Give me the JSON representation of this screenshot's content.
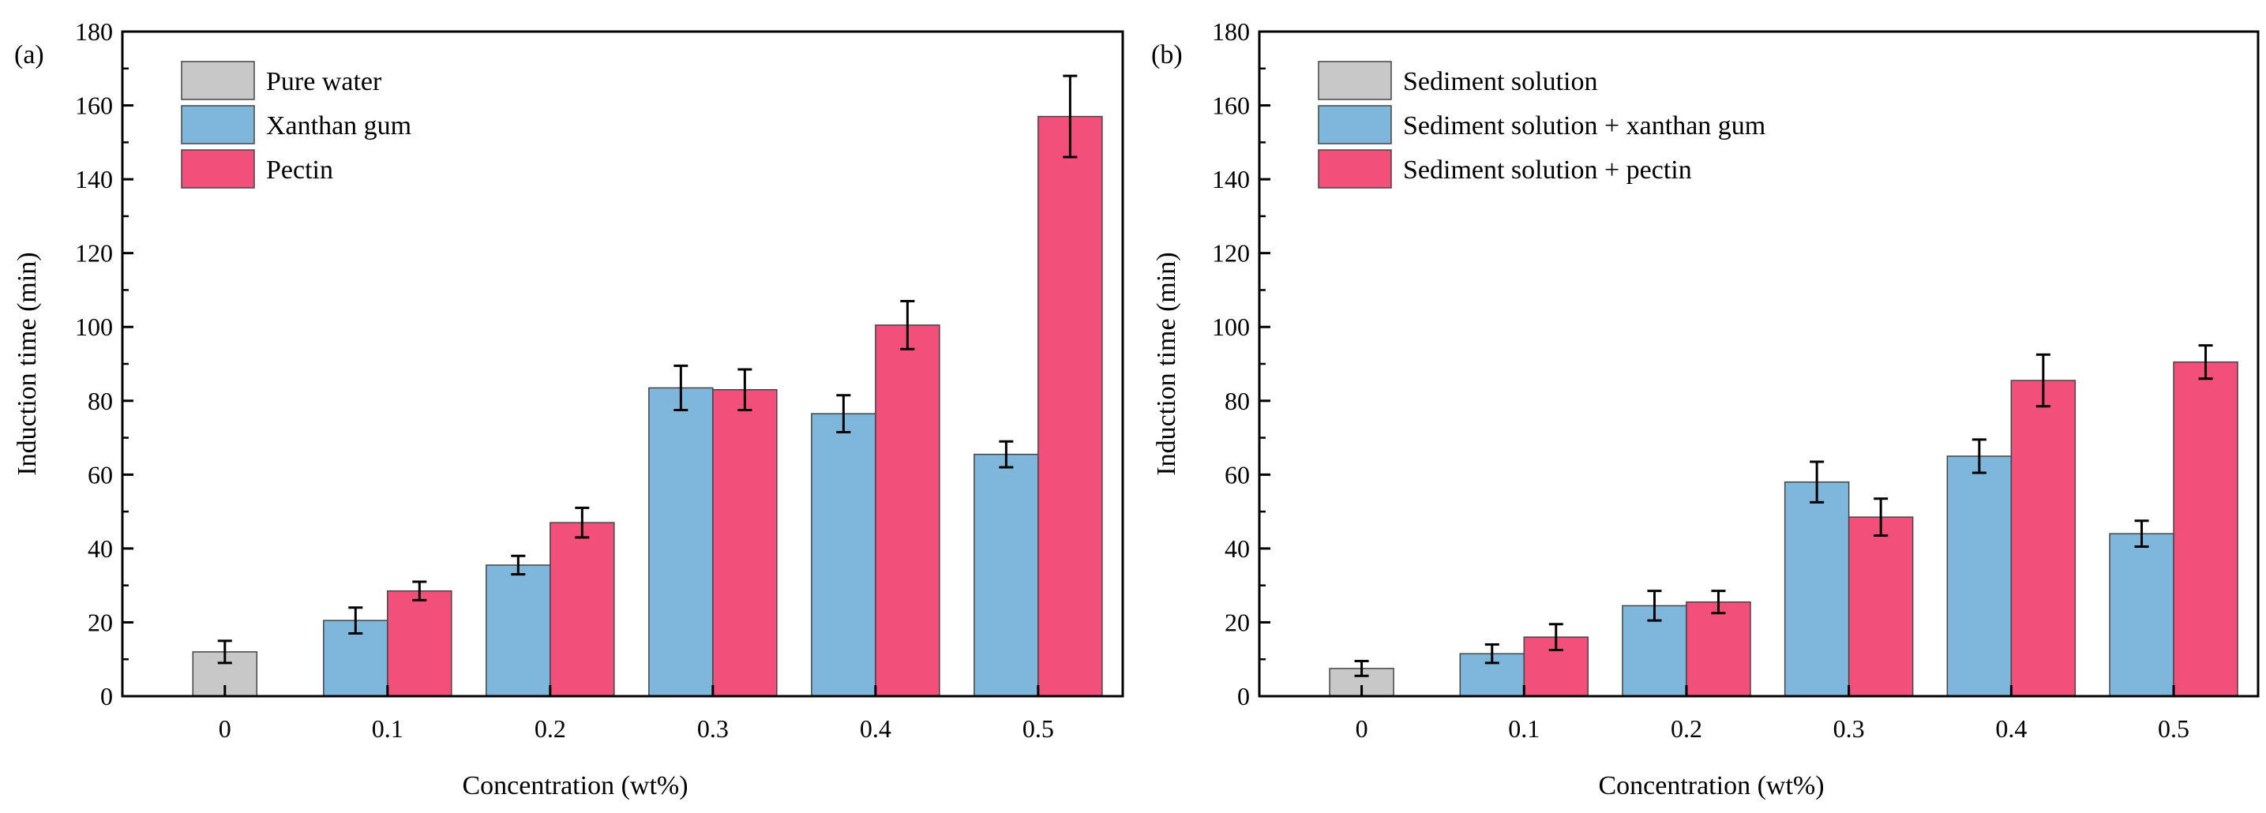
{
  "chart_data": [
    {
      "type": "bar",
      "panel_label": "(a)",
      "title": "",
      "xlabel": "Concentration (wt%)",
      "ylabel": "Induction time (min)",
      "ylim": [
        0,
        180
      ],
      "yticks": [
        "0",
        "20",
        "40",
        "60",
        "80",
        "100",
        "120",
        "140",
        "160",
        "180"
      ],
      "categories": [
        "0",
        "0.1",
        "0.2",
        "0.3",
        "0.4",
        "0.5"
      ],
      "legend_position": "top-left",
      "series": [
        {
          "name": "Pure water",
          "color": "#c8c8c8",
          "values": [
            12,
            null,
            null,
            null,
            null,
            null
          ],
          "errors": [
            3,
            null,
            null,
            null,
            null,
            null
          ]
        },
        {
          "name": "Xanthan gum",
          "color": "#7fb6dc",
          "values": [
            null,
            20.5,
            35.5,
            83.5,
            76.5,
            65.5
          ],
          "errors": [
            null,
            3.5,
            2.5,
            6,
            5,
            3.5
          ]
        },
        {
          "name": "Pectin",
          "color": "#f34f7b",
          "values": [
            null,
            28.5,
            47,
            83,
            100.5,
            157
          ],
          "errors": [
            null,
            2.5,
            4,
            5.5,
            6.5,
            11
          ]
        }
      ]
    },
    {
      "type": "bar",
      "panel_label": "(b)",
      "title": "",
      "xlabel": "Concentration (wt%)",
      "ylabel": "Induction time (min)",
      "ylim": [
        0,
        180
      ],
      "yticks": [
        "0",
        "20",
        "40",
        "60",
        "80",
        "100",
        "120",
        "140",
        "160",
        "180"
      ],
      "categories": [
        "0",
        "0.1",
        "0.2",
        "0.3",
        "0.4",
        "0.5"
      ],
      "legend_position": "top-left",
      "series": [
        {
          "name": "Sediment solution",
          "color": "#c8c8c8",
          "values": [
            7.5,
            null,
            null,
            null,
            null,
            null
          ],
          "errors": [
            2,
            null,
            null,
            null,
            null,
            null
          ]
        },
        {
          "name": "Sediment solution + xanthan gum",
          "color": "#7fb6dc",
          "values": [
            null,
            11.5,
            24.5,
            58,
            65,
            44
          ],
          "errors": [
            null,
            2.5,
            4,
            5.5,
            4.5,
            3.5
          ]
        },
        {
          "name": "Sediment solution + pectin",
          "color": "#f34f7b",
          "values": [
            null,
            16,
            25.5,
            48.5,
            85.5,
            90.5
          ],
          "errors": [
            null,
            3.5,
            3,
            5,
            7,
            4.5
          ]
        }
      ]
    }
  ]
}
